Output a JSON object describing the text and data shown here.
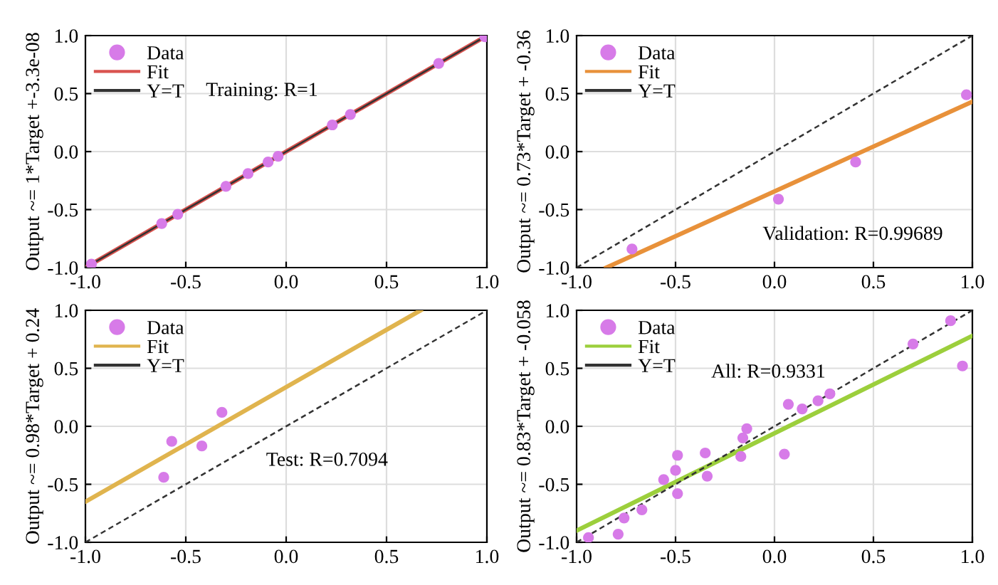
{
  "chart_data": [
    {
      "type": "scatter",
      "ylabel": "Output ~= 1*Target +-3.3e-08",
      "xlim": [
        -1,
        1
      ],
      "ylim": [
        -1,
        1
      ],
      "xticks": [
        {
          "value": -1,
          "label": "-1.0"
        },
        {
          "value": -0.5,
          "label": "-0.5"
        },
        {
          "value": 0,
          "label": "0.0"
        },
        {
          "value": 0.5,
          "label": "0.5"
        },
        {
          "value": 1,
          "label": "1.0"
        }
      ],
      "yticks": [
        {
          "value": -1,
          "label": "-1.0"
        },
        {
          "value": -0.5,
          "label": "-0.5"
        },
        {
          "value": 0,
          "label": "0.0"
        },
        {
          "value": 0.5,
          "label": "0.5"
        },
        {
          "value": 1,
          "label": "1.0"
        }
      ],
      "grid": true,
      "legend": "top left",
      "annotations": [
        "Training: R=1"
      ],
      "series": [
        {
          "name": "Data",
          "color": "#d77be8",
          "marker": "circle",
          "x": [
            -0.97,
            -0.62,
            -0.54,
            -0.3,
            -0.19,
            -0.09,
            -0.04,
            0.23,
            0.32,
            0.76,
            0.99
          ],
          "values": [
            -0.97,
            -0.62,
            -0.54,
            -0.3,
            -0.19,
            -0.09,
            -0.04,
            0.23,
            0.32,
            0.76,
            0.99
          ]
        },
        {
          "name": "Fit",
          "type": "line",
          "color": "#d9534f",
          "line_style": "solid",
          "x": [
            -1,
            1
          ],
          "values": [
            -1,
            1
          ]
        },
        {
          "name": "Y=T",
          "type": "line",
          "color": "#333333",
          "line_style": "solid",
          "x": [
            -1,
            1
          ],
          "values": [
            -1,
            1
          ]
        }
      ]
    },
    {
      "type": "scatter",
      "ylabel": "Output ~= 0.73*Target + -0.36",
      "xlim": [
        -1,
        1
      ],
      "ylim": [
        -1,
        1
      ],
      "xticks": [
        {
          "value": -1,
          "label": "-1.0"
        },
        {
          "value": -0.5,
          "label": "-0.5"
        },
        {
          "value": 0,
          "label": "0.0"
        },
        {
          "value": 0.5,
          "label": "0.5"
        },
        {
          "value": 1,
          "label": "1.0"
        }
      ],
      "yticks": [
        {
          "value": -1,
          "label": "-1.0"
        },
        {
          "value": -0.5,
          "label": "-0.5"
        },
        {
          "value": 0,
          "label": "0.0"
        },
        {
          "value": 0.5,
          "label": "0.5"
        },
        {
          "value": 1,
          "label": "1.0"
        }
      ],
      "grid": true,
      "legend": "top left",
      "annotations": [
        "Validation: R=0.99689"
      ],
      "series": [
        {
          "name": "Data",
          "color": "#d77be8",
          "marker": "circle",
          "x": [
            -0.72,
            0.02,
            0.41,
            0.97
          ],
          "values": [
            -0.84,
            -0.41,
            -0.09,
            0.49
          ]
        },
        {
          "name": "Fit",
          "type": "line",
          "color": "#e8913a",
          "line_style": "solid",
          "x": [
            -0.85,
            1
          ],
          "values": [
            -1,
            0.43
          ]
        },
        {
          "name": "Y=T",
          "type": "line",
          "color": "#333333",
          "line_style": "dashed",
          "x": [
            -1,
            1
          ],
          "values": [
            -1,
            1
          ]
        }
      ]
    },
    {
      "type": "scatter",
      "ylabel": "Output ~= 0.98*Target + 0.24",
      "xlim": [
        -1,
        1
      ],
      "ylim": [
        -1,
        1
      ],
      "xticks": [
        {
          "value": -1,
          "label": "-1.0"
        },
        {
          "value": -0.5,
          "label": "-0.5"
        },
        {
          "value": 0,
          "label": "0.0"
        },
        {
          "value": 0.5,
          "label": "0.5"
        },
        {
          "value": 1,
          "label": "1.0"
        }
      ],
      "yticks": [
        {
          "value": -1,
          "label": "-1.0"
        },
        {
          "value": -0.5,
          "label": "-0.5"
        },
        {
          "value": 0,
          "label": "0.0"
        },
        {
          "value": 0.5,
          "label": "0.5"
        },
        {
          "value": 1,
          "label": "1.0"
        }
      ],
      "grid": true,
      "legend": "top left",
      "annotations": [
        "Test: R=0.7094"
      ],
      "series": [
        {
          "name": "Data",
          "color": "#d77be8",
          "marker": "circle",
          "x": [
            -0.61,
            -0.57,
            -0.42,
            -0.32
          ],
          "values": [
            -0.44,
            -0.13,
            -0.17,
            0.12
          ]
        },
        {
          "name": "Fit",
          "type": "line",
          "color": "#e0b44e",
          "line_style": "solid",
          "x": [
            -1,
            0.67
          ],
          "values": [
            -0.65,
            1
          ]
        },
        {
          "name": "Y=T",
          "type": "line",
          "color": "#333333",
          "line_style": "dashed",
          "x": [
            -1,
            1
          ],
          "values": [
            -1,
            1
          ]
        }
      ]
    },
    {
      "type": "scatter",
      "ylabel": "Output ~= 0.83*Target + -0.058",
      "xlim": [
        -1,
        1
      ],
      "ylim": [
        -1,
        1
      ],
      "xticks": [
        {
          "value": -1,
          "label": "-1.0"
        },
        {
          "value": -0.5,
          "label": "-0.5"
        },
        {
          "value": 0,
          "label": "0.0"
        },
        {
          "value": 0.5,
          "label": "0.5"
        },
        {
          "value": 1,
          "label": "1.0"
        }
      ],
      "yticks": [
        {
          "value": -1,
          "label": "-1.0"
        },
        {
          "value": -0.5,
          "label": "-0.5"
        },
        {
          "value": 0,
          "label": "0.0"
        },
        {
          "value": 0.5,
          "label": "0.5"
        },
        {
          "value": 1,
          "label": "1.0"
        }
      ],
      "grid": true,
      "legend": "top left",
      "annotations": [
        "All: R=0.9331"
      ],
      "series": [
        {
          "name": "Data",
          "color": "#d77be8",
          "marker": "circle",
          "x": [
            -0.94,
            -0.79,
            -0.76,
            -0.67,
            -0.56,
            -0.5,
            -0.49,
            -0.49,
            -0.35,
            -0.34,
            -0.17,
            -0.16,
            -0.14,
            0.05,
            0.07,
            0.14,
            0.22,
            0.28,
            0.7,
            0.89,
            0.95
          ],
          "values": [
            -0.96,
            -0.93,
            -0.79,
            -0.72,
            -0.46,
            -0.38,
            -0.25,
            -0.58,
            -0.23,
            -0.43,
            -0.26,
            -0.1,
            -0.02,
            -0.24,
            0.19,
            0.15,
            0.22,
            0.28,
            0.71,
            0.91,
            0.52
          ]
        },
        {
          "name": "Fit",
          "type": "line",
          "color": "#9ccf3c",
          "line_style": "solid",
          "x": [
            -1,
            1
          ],
          "values": [
            -0.9,
            0.78
          ]
        },
        {
          "name": "Y=T",
          "type": "line",
          "color": "#333333",
          "line_style": "dashed",
          "x": [
            -1,
            1
          ],
          "values": [
            -1,
            1
          ]
        }
      ]
    }
  ]
}
